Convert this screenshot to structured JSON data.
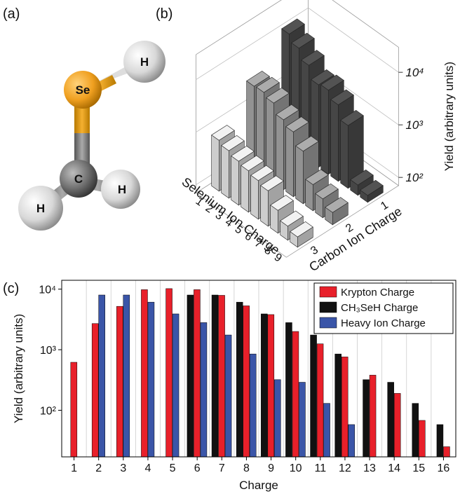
{
  "panel_labels": [
    "(a)",
    "(b)",
    "(c)"
  ],
  "molecule": {
    "atoms": [
      "Se",
      "H",
      "C",
      "H",
      "H"
    ]
  },
  "chart_data": [
    {
      "type": "bar3d",
      "x_label": "Selenium Ion Charge",
      "y_label": "Carbon Ion Charge",
      "z_label": "Yield (arbitrary units)",
      "x_categories": [
        "1",
        "2",
        "3",
        "4",
        "5",
        "6",
        "7",
        "8",
        "9"
      ],
      "y_categories": [
        "1",
        "2",
        "3"
      ],
      "colors": [
        "#4a4a4a",
        "#9a9a9a",
        "#d8d8d8"
      ],
      "values": [
        [
          9600,
          7000,
          4500,
          2600,
          2800,
          2000,
          1100,
          110,
          95
        ],
        [
          2600,
          2700,
          2300,
          1500,
          1200,
          700,
          220,
          160,
          120
        ],
        [
          650,
          560,
          480,
          430,
          380,
          330,
          190,
          130,
          110
        ]
      ],
      "zlog": true,
      "zlim": [
        70,
        30000
      ],
      "zticks": [
        {
          "value": 100,
          "label": "10²"
        },
        {
          "value": 1000,
          "label": "10³"
        },
        {
          "value": 10000,
          "label": "10⁴"
        }
      ]
    },
    {
      "type": "bar",
      "x_label": "Charge",
      "y_label": "Yield (arbitrary units)",
      "categories": [
        "1",
        "2",
        "3",
        "4",
        "5",
        "6",
        "7",
        "8",
        "9",
        "10",
        "11",
        "12",
        "13",
        "14",
        "15",
        "16"
      ],
      "series": [
        {
          "name": "Krypton Charge",
          "color": "#e8202a",
          "values": [
            620,
            2700,
            5200,
            9800,
            10200,
            9800,
            7900,
            5300,
            3800,
            2000,
            1250,
            760,
            380,
            190,
            68,
            25
          ]
        },
        {
          "name": "CH₃SeH Charge",
          "color": "#111111",
          "values": [
            null,
            null,
            null,
            null,
            null,
            8000,
            8000,
            6100,
            3900,
            2800,
            1750,
            850,
            320,
            290,
            130,
            58
          ]
        },
        {
          "name": "Heavy Ion Charge",
          "color": "#3a55a8",
          "values": [
            null,
            8000,
            8000,
            6100,
            3900,
            2800,
            1750,
            850,
            320,
            290,
            130,
            58,
            null,
            null,
            null,
            null
          ]
        }
      ],
      "ylog": true,
      "ylim": [
        17,
        14000
      ],
      "yticks": [
        {
          "value": 100,
          "label": "10²"
        },
        {
          "value": 1000,
          "label": "10³"
        },
        {
          "value": 10000,
          "label": "10⁴"
        }
      ],
      "grid": true,
      "legend": "top-right"
    }
  ]
}
